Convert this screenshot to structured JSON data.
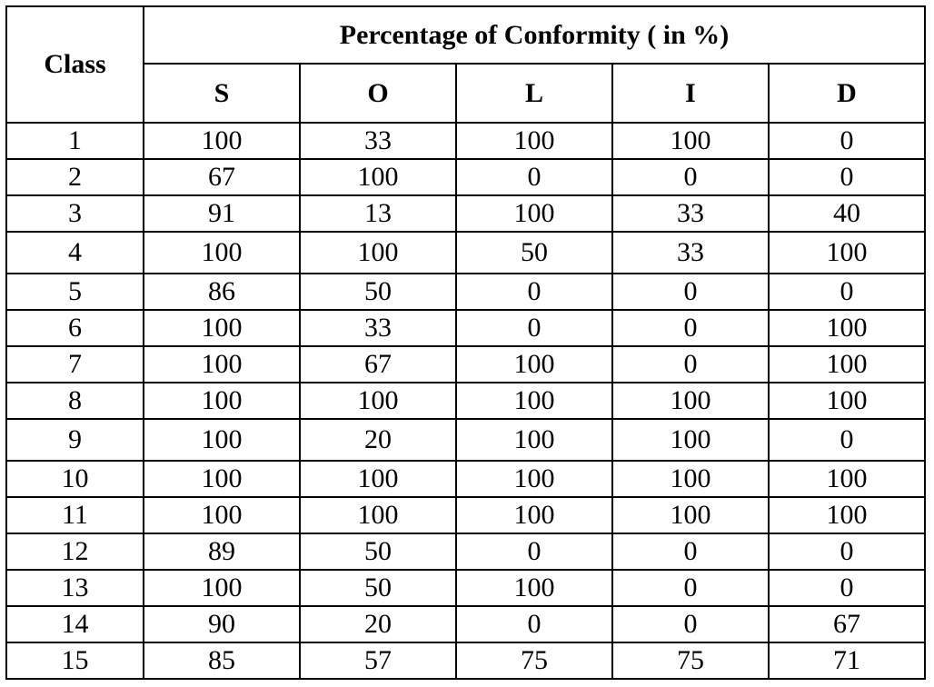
{
  "table": {
    "class_header": "Class",
    "group_header": "Percentage of Conformity ( in %)",
    "columns": [
      "S",
      "O",
      "L",
      "I",
      "D"
    ],
    "rows": [
      {
        "class": "1",
        "values": [
          "100",
          "33",
          "100",
          "100",
          "0"
        ]
      },
      {
        "class": "2",
        "values": [
          "67",
          "100",
          "0",
          "0",
          "0"
        ]
      },
      {
        "class": "3",
        "values": [
          "91",
          "13",
          "100",
          "33",
          "40"
        ]
      },
      {
        "class": "4",
        "values": [
          "100",
          "100",
          "50",
          "33",
          "100"
        ]
      },
      {
        "class": "5",
        "values": [
          "86",
          "50",
          "0",
          "0",
          "0"
        ]
      },
      {
        "class": "6",
        "values": [
          "100",
          "33",
          "0",
          "0",
          "100"
        ]
      },
      {
        "class": "7",
        "values": [
          "100",
          "67",
          "100",
          "0",
          "100"
        ]
      },
      {
        "class": "8",
        "values": [
          "100",
          "100",
          "100",
          "100",
          "100"
        ]
      },
      {
        "class": "9",
        "values": [
          "100",
          "20",
          "100",
          "100",
          "0"
        ]
      },
      {
        "class": "10",
        "values": [
          "100",
          "100",
          "100",
          "100",
          "100"
        ]
      },
      {
        "class": "11",
        "values": [
          "100",
          "100",
          "100",
          "100",
          "100"
        ]
      },
      {
        "class": "12",
        "values": [
          "89",
          "50",
          "0",
          "0",
          "0"
        ]
      },
      {
        "class": "13",
        "values": [
          "100",
          "50",
          "100",
          "0",
          "0"
        ]
      },
      {
        "class": "14",
        "values": [
          "90",
          "20",
          "0",
          "0",
          "67"
        ]
      },
      {
        "class": "15",
        "values": [
          "85",
          "57",
          "75",
          "75",
          "71"
        ]
      }
    ]
  }
}
